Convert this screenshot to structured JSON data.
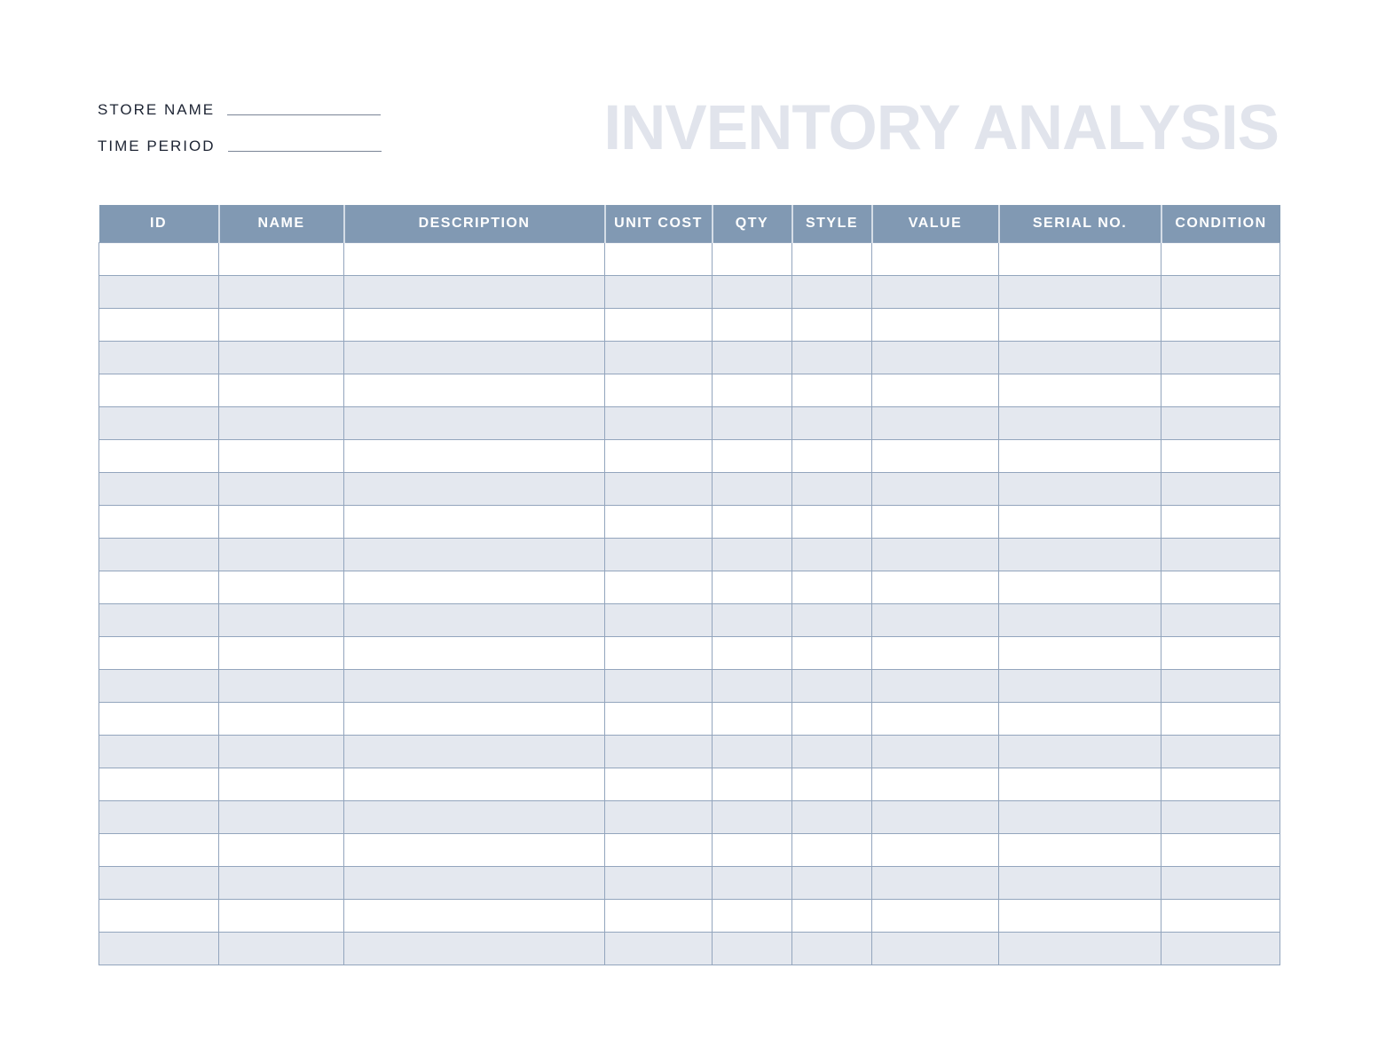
{
  "header": {
    "store_name_label": "STORE NAME",
    "time_period_label": "TIME PERIOD",
    "title": "INVENTORY ANALYSIS"
  },
  "table": {
    "columns": [
      "ID",
      "NAME",
      "DESCRIPTION",
      "UNIT COST",
      "QTY",
      "STYLE",
      "VALUE",
      "SERIAL NO.",
      "CONDITION"
    ],
    "row_count": 22
  },
  "colors": {
    "header_bg": "#8199b3",
    "alt_row": "#e4e8ef",
    "title": "#e1e4ec",
    "border": "#93a5bd"
  }
}
